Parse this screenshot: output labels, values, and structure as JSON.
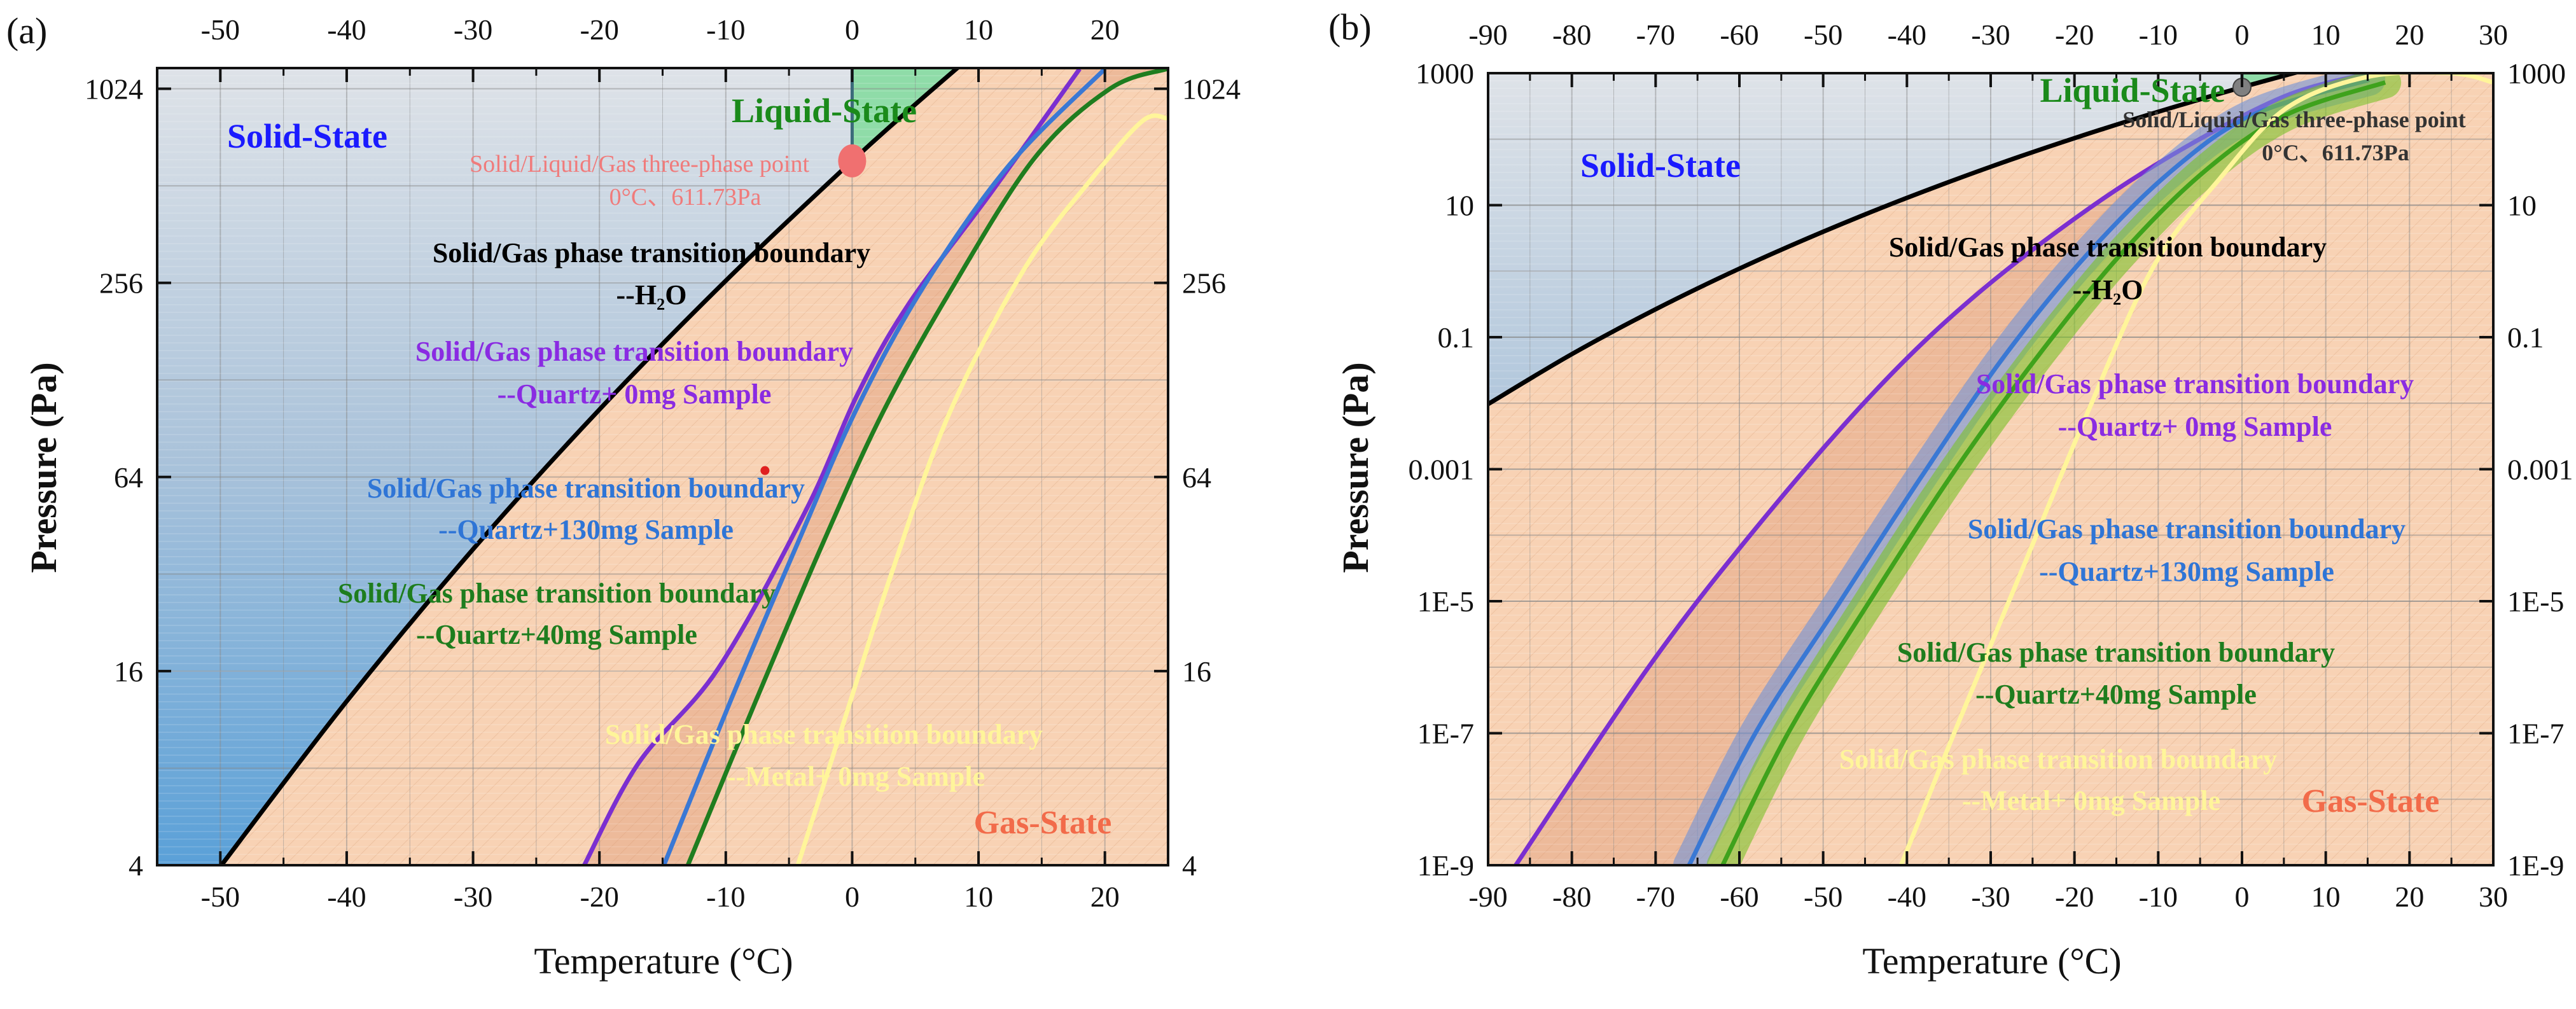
{
  "chart_data": [
    {
      "panel_label": "(a)",
      "type": "line",
      "xlabel": "Temperature (°C)",
      "ylabel": "Pressure (Pa)",
      "xlim": [
        -55,
        25
      ],
      "ylim": [
        4,
        1187
      ],
      "yscale": "log2",
      "xticks": [
        -50,
        -40,
        -30,
        -20,
        -10,
        0,
        10,
        20
      ],
      "xtick_labels": [
        "-50",
        "-40",
        "-30",
        "-20",
        "-10",
        "0",
        "10",
        "20"
      ],
      "yticks": [
        4,
        16,
        64,
        256,
        1024
      ],
      "ytick_labels": [
        "4",
        "16",
        "64",
        "256",
        "1024"
      ],
      "yminor": [
        8,
        32,
        128,
        512
      ],
      "grid": true,
      "regions": {
        "solid": "Solid-State",
        "liquid": "Liquid-State",
        "gas": "Gas-State"
      },
      "triple_point": {
        "x": 0,
        "y": 611.73,
        "label1": "Solid/Liquid/Gas three-phase point",
        "label2": "0°C、611.73Pa"
      },
      "marker": {
        "x": -6.9,
        "y": 67
      },
      "series": [
        {
          "name": "H2O",
          "label1": "Solid/Gas phase transition boundary",
          "label2": "--H₂O",
          "color": "#000000",
          "points": [
            [
              -50,
              3.96
            ],
            [
              -40,
              12.9
            ],
            [
              -30,
              38.2
            ],
            [
              -20,
              103.6
            ],
            [
              -10,
              260
            ],
            [
              0,
              611.7
            ],
            [
              5,
              916
            ],
            [
              10,
              1353
            ]
          ]
        },
        {
          "name": "Quartz+0mg",
          "label1": "Solid/Gas phase transition boundary",
          "label2": "--Quartz+ 0mg Sample",
          "color": "#7b2fd0",
          "points": [
            [
              -21.2,
              4
            ],
            [
              -16.9,
              8.3
            ],
            [
              -10.6,
              16.3
            ],
            [
              -3.6,
              51
            ],
            [
              0.4,
              115
            ],
            [
              4.4,
              218
            ],
            [
              11.1,
              494
            ],
            [
              18,
              1180
            ]
          ]
        },
        {
          "name": "Quartz+130mg",
          "label1": "Solid/Gas phase transition boundary",
          "label2": "--Quartz+130mg Sample",
          "color": "#3a78d4",
          "points": [
            [
              -14.9,
              4
            ],
            [
              -9.6,
              13
            ],
            [
              -4.3,
              40
            ],
            [
              0.4,
              105
            ],
            [
              5.7,
              251
            ],
            [
              12.4,
              592
            ],
            [
              20,
              1180
            ]
          ]
        },
        {
          "name": "Quartz+40mg",
          "label1": "Solid/Gas phase transition boundary",
          "label2": "--Quartz+40mg Sample",
          "color": "#1f7d1f",
          "points": [
            [
              -13,
              4
            ],
            [
              -7.6,
              13
            ],
            [
              -2.3,
              40
            ],
            [
              2.4,
              101
            ],
            [
              7.7,
              239
            ],
            [
              14.4,
              622
            ],
            [
              20.4,
              1024
            ],
            [
              24.9,
              1180
            ]
          ]
        },
        {
          "name": "Metal+0mg",
          "label1": "Solid/Gas phase transition boundary",
          "label2": "--Metal+ 0mg Sample",
          "color": "#fff59a",
          "points": [
            [
              -4.3,
              4
            ],
            [
              -0.9,
              10.4
            ],
            [
              3.1,
              32
            ],
            [
              7.7,
              101
            ],
            [
              13.7,
              286
            ],
            [
              19,
              541
            ],
            [
              23,
              815
            ],
            [
              24.9,
              830
            ]
          ]
        }
      ]
    },
    {
      "panel_label": "(b)",
      "type": "line",
      "xlabel": "Temperature (°C)",
      "ylabel": "Pressure (Pa)",
      "xlim": [
        -90,
        30
      ],
      "ylim": [
        1e-09,
        1000
      ],
      "yscale": "log10",
      "xticks": [
        -90,
        -80,
        -70,
        -60,
        -50,
        -40,
        -30,
        -20,
        -10,
        0,
        10,
        20,
        30
      ],
      "xtick_labels": [
        "-90",
        "-80",
        "-70",
        "-60",
        "-50",
        "-40",
        "-30",
        "-20",
        "-10",
        "0",
        "10",
        "20",
        "30"
      ],
      "yticks": [
        1000,
        10,
        0.1,
        0.001,
        1e-05,
        1e-07,
        1e-09
      ],
      "ytick_labels": [
        "1000",
        "10",
        "0.1",
        "0.001",
        "1E-5",
        "1E-7",
        "1E-9"
      ],
      "grid": true,
      "regions": {
        "solid": "Solid-State",
        "liquid": "Liquid-State",
        "gas": "Gas-State"
      },
      "triple_point": {
        "x": 0,
        "y": 611.73,
        "label1": "Solid/Liquid/Gas three-phase point",
        "label2": "0°C、611.73Pa"
      },
      "series": [
        {
          "name": "H2O",
          "label1": "Solid/Gas phase transition boundary",
          "label2": "--H₂O",
          "color": "#000000",
          "points": [
            [
              -90,
              0.0097
            ],
            [
              -80,
              0.0554
            ],
            [
              -70,
              0.265
            ],
            [
              -60,
              1.093
            ],
            [
              -50,
              3.96
            ],
            [
              -40,
              12.9
            ],
            [
              -30,
              38.2
            ],
            [
              -20,
              103.6
            ],
            [
              -10,
              260
            ],
            [
              0,
              611.7
            ],
            [
              10,
              1353
            ]
          ]
        },
        {
          "name": "Quartz+0mg",
          "label1": "Solid/Gas phase transition boundary",
          "label2": "--Quartz+ 0mg Sample",
          "color": "#7b2fd0",
          "points": [
            [
              -86.7,
              1e-09
            ],
            [
              -70.9,
              9.8e-07
            ],
            [
              -58,
              0.000129
            ],
            [
              -44.2,
              0.0135
            ],
            [
              -32.3,
              0.38
            ],
            [
              -18.5,
              8.5
            ],
            [
              -6.6,
              77.6
            ],
            [
              5.3,
              457
            ],
            [
              15.2,
              1000
            ]
          ]
        },
        {
          "name": "Quartz+130mg",
          "label1": "Solid/Gas phase transition boundary",
          "label2": "--Quartz+130mg Sample",
          "color": "#3a78d4",
          "band": true,
          "points": [
            [
              -66,
              1e-09
            ],
            [
              -58,
              1.05e-07
            ],
            [
              -48.2,
              8.9e-06
            ],
            [
              -38.3,
              0.00076
            ],
            [
              -28.4,
              0.051
            ],
            [
              -18.5,
              1.78
            ],
            [
              -8.6,
              31.6
            ],
            [
              1.3,
              234
            ],
            [
              15.2,
              794
            ]
          ]
        },
        {
          "name": "Quartz+40mg",
          "label1": "Solid/Gas phase transition boundary",
          "label2": "--Quartz+40mg Sample",
          "color": "#1f7d1f",
          "band": true,
          "points": [
            [
              -62,
              1e-09
            ],
            [
              -54.1,
              1.05e-07
            ],
            [
              -44.2,
              1.12e-05
            ],
            [
              -34.3,
              0.00095
            ],
            [
              -24.4,
              0.051
            ],
            [
              -14.5,
              1.78
            ],
            [
              -4.6,
              31.6
            ],
            [
              5.3,
              234
            ],
            [
              17.1,
              724
            ]
          ]
        },
        {
          "name": "Metal+0mg",
          "label1": "Solid/Gas phase transition boundary",
          "label2": "--Metal+ 0mg Sample",
          "color": "#fff59a",
          "points": [
            [
              -40.7,
              1e-09
            ],
            [
              -34.3,
              1.05e-07
            ],
            [
              -26.4,
              2.7e-05
            ],
            [
              -18.5,
              0.0069
            ],
            [
              -10.6,
              1.15
            ],
            [
              -2.6,
              25.7
            ],
            [
              5.3,
              295
            ],
            [
              15.2,
              891
            ],
            [
              25,
              1000
            ],
            [
              30,
              724
            ]
          ]
        }
      ]
    }
  ]
}
